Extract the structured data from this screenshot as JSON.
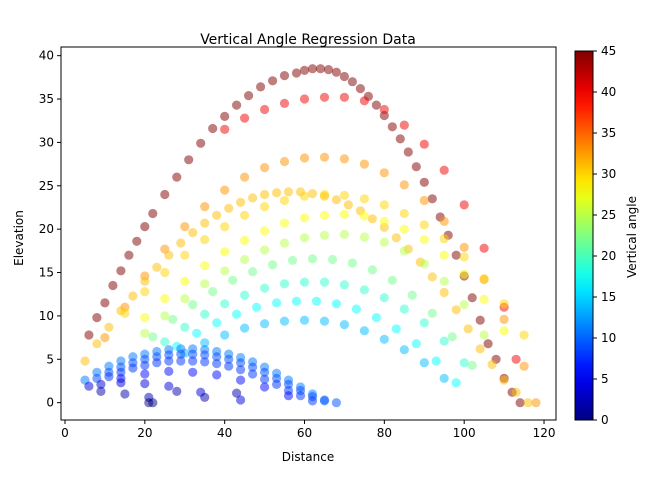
{
  "chart_data": {
    "type": "scatter",
    "title": "Vertical Angle Regression Data",
    "xlabel": "Distance",
    "ylabel": "Elevation",
    "xlim": [
      -1,
      123
    ],
    "ylim": [
      -2,
      41
    ],
    "xticks": [
      0,
      20,
      40,
      60,
      80,
      100,
      120
    ],
    "yticks": [
      0,
      5,
      10,
      15,
      20,
      25,
      30,
      35,
      40
    ],
    "grid": false,
    "marker_alpha": 0.5,
    "colorbar": {
      "label": "Vertical angle",
      "colormap": "jet",
      "min": 0,
      "max": 45,
      "ticks": [
        0,
        5,
        10,
        15,
        20,
        25,
        30,
        35,
        40,
        45
      ]
    },
    "series": [
      {
        "angle": 45,
        "x": [
          6,
          8,
          10,
          12,
          14,
          16,
          18,
          20,
          22,
          25,
          28,
          31,
          34,
          37,
          40,
          43,
          46,
          49,
          52,
          55,
          58,
          60,
          62,
          64,
          66,
          68,
          70,
          72,
          74,
          76,
          78,
          80,
          82,
          84,
          86,
          88,
          90,
          92,
          94,
          96,
          98,
          100,
          102,
          104,
          106,
          108,
          110,
          112,
          114
        ],
        "y": [
          7.8,
          9.8,
          11.5,
          13.5,
          15.2,
          17,
          18.6,
          20.3,
          21.8,
          24,
          26,
          28,
          29.9,
          31.6,
          33,
          34.3,
          35.4,
          36.4,
          37.1,
          37.7,
          38,
          38.3,
          38.5,
          38.5,
          38.4,
          38.1,
          37.6,
          37,
          36.2,
          35.3,
          34.3,
          33.1,
          31.8,
          30.4,
          28.9,
          27.2,
          25.4,
          23.5,
          21.4,
          19.3,
          17,
          14.6,
          12.1,
          9.5,
          6.8,
          5,
          2.8,
          1.2,
          0
        ]
      },
      {
        "angle": 40,
        "x": [
          40,
          45,
          50,
          55,
          60,
          65,
          70,
          75,
          80,
          85,
          90,
          95,
          100,
          105,
          110,
          113
        ],
        "y": [
          31.5,
          32.8,
          33.8,
          34.5,
          35,
          35.2,
          35.2,
          34.8,
          33.8,
          32,
          29.8,
          26.8,
          22.8,
          17.8,
          11,
          5
        ]
      },
      {
        "angle": 33,
        "x": [
          10,
          15,
          20,
          25,
          30,
          35,
          40,
          45,
          50,
          55,
          60,
          65,
          70,
          75,
          80,
          85,
          90,
          95,
          100,
          105,
          110,
          115,
          118
        ],
        "y": [
          7.5,
          11,
          14.6,
          17.7,
          20.3,
          22.6,
          24.5,
          26,
          27.1,
          27.8,
          28.2,
          28.3,
          28.1,
          27.5,
          26.5,
          25.1,
          23.3,
          20.9,
          17.9,
          14.2,
          9.6,
          4.2,
          0
        ]
      },
      {
        "angle": 31,
        "x": [
          5,
          8,
          11,
          14,
          17,
          20,
          23,
          26,
          29,
          32,
          35,
          38,
          41,
          44,
          47,
          50,
          53,
          56,
          59,
          62,
          65,
          68,
          71,
          74,
          77,
          80,
          83,
          86,
          89,
          92,
          95,
          98,
          101,
          104,
          107,
          110,
          113,
          116
        ],
        "y": [
          4.8,
          6.8,
          8.7,
          10.6,
          12.3,
          14,
          15.6,
          17,
          18.4,
          19.6,
          20.7,
          21.6,
          22.4,
          23.1,
          23.6,
          24,
          24.2,
          24.3,
          24.3,
          24.1,
          23.8,
          23.4,
          22.8,
          22.1,
          21.2,
          20.2,
          19,
          17.7,
          16.2,
          14.5,
          12.7,
          10.7,
          8.5,
          6.2,
          4.4,
          2.6,
          1.2,
          0
        ]
      },
      {
        "angle": 30,
        "x": [
          15,
          20,
          25,
          30,
          35,
          40,
          45,
          50,
          55,
          60,
          65,
          70,
          75,
          80,
          85,
          90,
          95,
          100,
          105,
          110,
          115
        ],
        "y": [
          10.3,
          12.8,
          15,
          17,
          18.8,
          20.3,
          21.6,
          22.6,
          23.3,
          23.8,
          24,
          23.9,
          23.5,
          22.8,
          21.8,
          20.5,
          18.9,
          16.8,
          14.3,
          11.4,
          7.8
        ]
      },
      {
        "angle": 28,
        "x": [
          20,
          25,
          30,
          35,
          40,
          45,
          50,
          55,
          60,
          65,
          70,
          75,
          80,
          85,
          90,
          95,
          100,
          105,
          110
        ],
        "y": [
          9.8,
          12,
          14,
          15.8,
          17.4,
          18.7,
          19.8,
          20.7,
          21.3,
          21.6,
          21.7,
          21.5,
          20.9,
          20,
          18.8,
          17,
          14.8,
          11.9,
          8.3
        ]
      },
      {
        "angle": 25,
        "x": [
          20,
          25,
          30,
          35,
          40,
          45,
          50,
          55,
          60,
          65,
          70,
          75,
          80,
          85,
          90,
          95,
          100,
          105
        ],
        "y": [
          8,
          10,
          12,
          13.7,
          15.2,
          16.5,
          17.6,
          18.4,
          19,
          19.3,
          19.4,
          19.1,
          18.5,
          17.5,
          16,
          14,
          11.3,
          7.8
        ]
      },
      {
        "angle": 22,
        "x": [
          22,
          27,
          32,
          37,
          42,
          47,
          52,
          57,
          62,
          67,
          72,
          77,
          82,
          87,
          92,
          97,
          102
        ],
        "y": [
          7.6,
          9.6,
          11.3,
          12.8,
          14.1,
          15.1,
          15.9,
          16.4,
          16.6,
          16.5,
          16.1,
          15.3,
          14.1,
          12.4,
          10.3,
          7.6,
          4.3
        ]
      },
      {
        "angle": 19,
        "x": [
          25,
          30,
          35,
          40,
          45,
          50,
          55,
          60,
          65,
          70,
          75,
          80,
          85,
          90,
          95,
          100
        ],
        "y": [
          7,
          8.7,
          10.2,
          11.4,
          12.4,
          13.2,
          13.7,
          13.9,
          13.9,
          13.6,
          13,
          12.1,
          10.8,
          9.2,
          7.1,
          4.6
        ]
      },
      {
        "angle": 17,
        "x": [
          28,
          33,
          38,
          43,
          48,
          53,
          58,
          63,
          68,
          73,
          78,
          83,
          88,
          93,
          98
        ],
        "y": [
          6.5,
          8,
          9.2,
          10.2,
          11,
          11.5,
          11.7,
          11.7,
          11.4,
          10.8,
          9.8,
          8.5,
          6.8,
          4.8,
          2.3
        ]
      },
      {
        "angle": 14,
        "x": [
          30,
          35,
          40,
          45,
          50,
          55,
          60,
          65,
          70,
          75,
          80,
          85,
          90,
          95
        ],
        "y": [
          5.7,
          6.9,
          7.8,
          8.6,
          9.1,
          9.4,
          9.5,
          9.4,
          9,
          8.3,
          7.3,
          6.1,
          4.6,
          2.8
        ]
      },
      {
        "angle": 11,
        "x": [
          5,
          8,
          11,
          14,
          17,
          20,
          23,
          26,
          29,
          32,
          35,
          38,
          41,
          44,
          47,
          50,
          53,
          56,
          59,
          62,
          65
        ],
        "y": [
          2.6,
          3.5,
          4.2,
          4.8,
          5.3,
          5.6,
          5.9,
          6.1,
          6.2,
          6.2,
          6.1,
          5.9,
          5.6,
          5.2,
          4.7,
          4.1,
          3.4,
          2.6,
          1.8,
          1,
          0.2
        ]
      },
      {
        "angle": 9,
        "x": [
          8,
          11,
          14,
          17,
          20,
          23,
          26,
          29,
          32,
          35,
          38,
          41,
          44,
          47,
          50,
          53,
          56,
          59,
          62,
          65,
          68
        ],
        "y": [
          2.8,
          3.5,
          4.1,
          4.6,
          5,
          5.3,
          5.5,
          5.6,
          5.6,
          5.5,
          5.3,
          5,
          4.6,
          4.1,
          3.5,
          2.8,
          2.1,
          1.4,
          0.7,
          0.3,
          0
        ]
      },
      {
        "angle": 8,
        "x": [
          11,
          14,
          17,
          20,
          23,
          26,
          29,
          32,
          35,
          38,
          41,
          44,
          47,
          50,
          53,
          56,
          59,
          62
        ],
        "y": [
          3,
          3.5,
          4,
          4.3,
          4.6,
          4.8,
          4.8,
          4.8,
          4.7,
          4.5,
          4.2,
          3.8,
          3.3,
          2.7,
          2.1,
          1.4,
          0.8,
          0.2
        ]
      },
      {
        "angle": 6,
        "x": [
          14,
          20,
          26,
          32,
          38,
          44,
          50,
          56
        ],
        "y": [
          2.8,
          3.3,
          3.6,
          3.5,
          3.2,
          2.6,
          1.8,
          0.8
        ]
      },
      {
        "angle": 4,
        "x": [
          6,
          9,
          14,
          20,
          26,
          34,
          44
        ],
        "y": [
          1.9,
          2.1,
          2.3,
          2.2,
          1.9,
          1.2,
          0.3
        ]
      },
      {
        "angle": 2,
        "x": [
          9,
          15,
          21,
          28,
          35,
          43
        ],
        "y": [
          1.3,
          1,
          0.6,
          1.3,
          0.6,
          1.1
        ]
      },
      {
        "angle": 0,
        "x": [
          21,
          22
        ],
        "y": [
          0,
          0
        ]
      }
    ]
  }
}
